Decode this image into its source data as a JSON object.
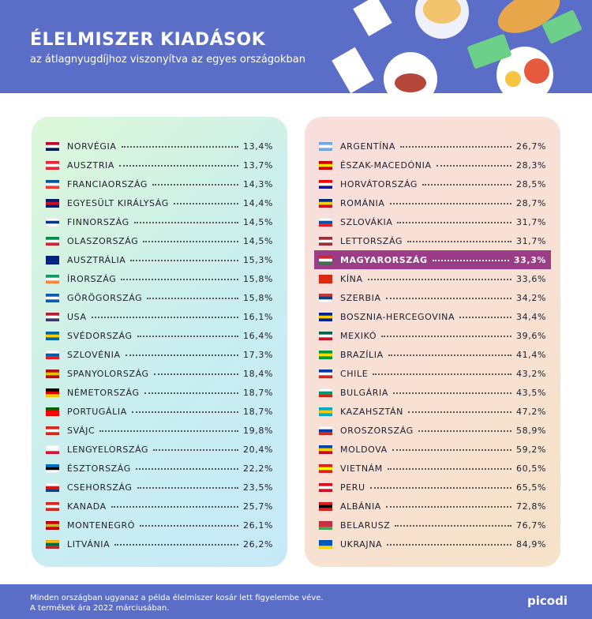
{
  "header": {
    "title": "ÉLELMISZER KIADÁSOK",
    "subtitle": "az átlagnyugdíjhoz viszonyítva az egyes országokban"
  },
  "left": {
    "rows": [
      [
        "NORVÉGIA",
        "13,4%"
      ],
      [
        "AUSZTRIA",
        "13,7%"
      ],
      [
        "FRANCIAORSZÁG",
        "14,3%"
      ],
      [
        "EGYESÜLT KIRÁLYSÁG",
        "14,4%"
      ],
      [
        "FINNORSZÁG",
        "14,5%"
      ],
      [
        "OLASZORSZÁG",
        "14,5%"
      ],
      [
        "AUSZTRÁLIA",
        "15,3%"
      ],
      [
        "ÍRORSZÁG",
        "15,8%"
      ],
      [
        "GÖRÖGORSZÁG",
        "15,8%"
      ],
      [
        "USA",
        "16,1%"
      ],
      [
        "SVÉDORSZÁG",
        "16,4%"
      ],
      [
        "SZLOVÉNIA",
        "17,3%"
      ],
      [
        "SPANYOLORSZÁG",
        "18,4%"
      ],
      [
        "NÉMETORSZÁG",
        "18,7%"
      ],
      [
        "PORTUGÁLIA",
        "18,7%"
      ],
      [
        "SVÁJC",
        "19,8%"
      ],
      [
        "LENGYELORSZÁG",
        "20,4%"
      ],
      [
        "ÉSZTORSZÁG",
        "22,2%"
      ],
      [
        "CSEHORSZÁG",
        "23,5%"
      ],
      [
        "KANADA",
        "25,7%"
      ],
      [
        "MONTENEGRÓ",
        "26,1%"
      ],
      [
        "LITVÁNIA",
        "26,2%"
      ]
    ]
  },
  "right": {
    "highlight_row": 6,
    "rows": [
      [
        "ARGENTÍNA",
        "26,7%"
      ],
      [
        "ÉSZAK-MACEDÓNIA",
        "28,3%"
      ],
      [
        "HORVÁTORSZÁG",
        "28,5%"
      ],
      [
        "ROMÁNIA",
        "28,7%"
      ],
      [
        "SZLOVÁKIA",
        "31,7%"
      ],
      [
        "LETTORSZÁG",
        "31,7%"
      ],
      [
        "MAGYARORSZÁG",
        "33,3%"
      ],
      [
        "KÍNA",
        "33,6%"
      ],
      [
        "SZERBIA",
        "34,2%"
      ],
      [
        "BOSZNIA-HERCEGOVINA",
        "34,4%"
      ],
      [
        "MEXIKÓ",
        "39,6%"
      ],
      [
        "BRAZÍLIA",
        "41,4%"
      ],
      [
        "CHILE",
        "43,2%"
      ],
      [
        "BULGÁRIA",
        "43,5%"
      ],
      [
        "KAZAHSZTÁN",
        "47,2%"
      ],
      [
        "OROSZORSZÁG",
        "58,9%"
      ],
      [
        "MOLDOVA",
        "59,2%"
      ],
      [
        "VIETNÁM",
        "60,5%"
      ],
      [
        "PERU",
        "65,5%"
      ],
      [
        "ALBÁNIA",
        "72,8%"
      ],
      [
        "BELARUSZ",
        "76,7%"
      ],
      [
        "UKRAJNA",
        "84,9%"
      ]
    ]
  },
  "footer": {
    "lines": [
      "Minden országban ugyanaz a példa élelmiszer kosár lett figyelembe véve.",
      "A termékek ára 2022 márciusában."
    ],
    "logo": "picodi"
  }
}
